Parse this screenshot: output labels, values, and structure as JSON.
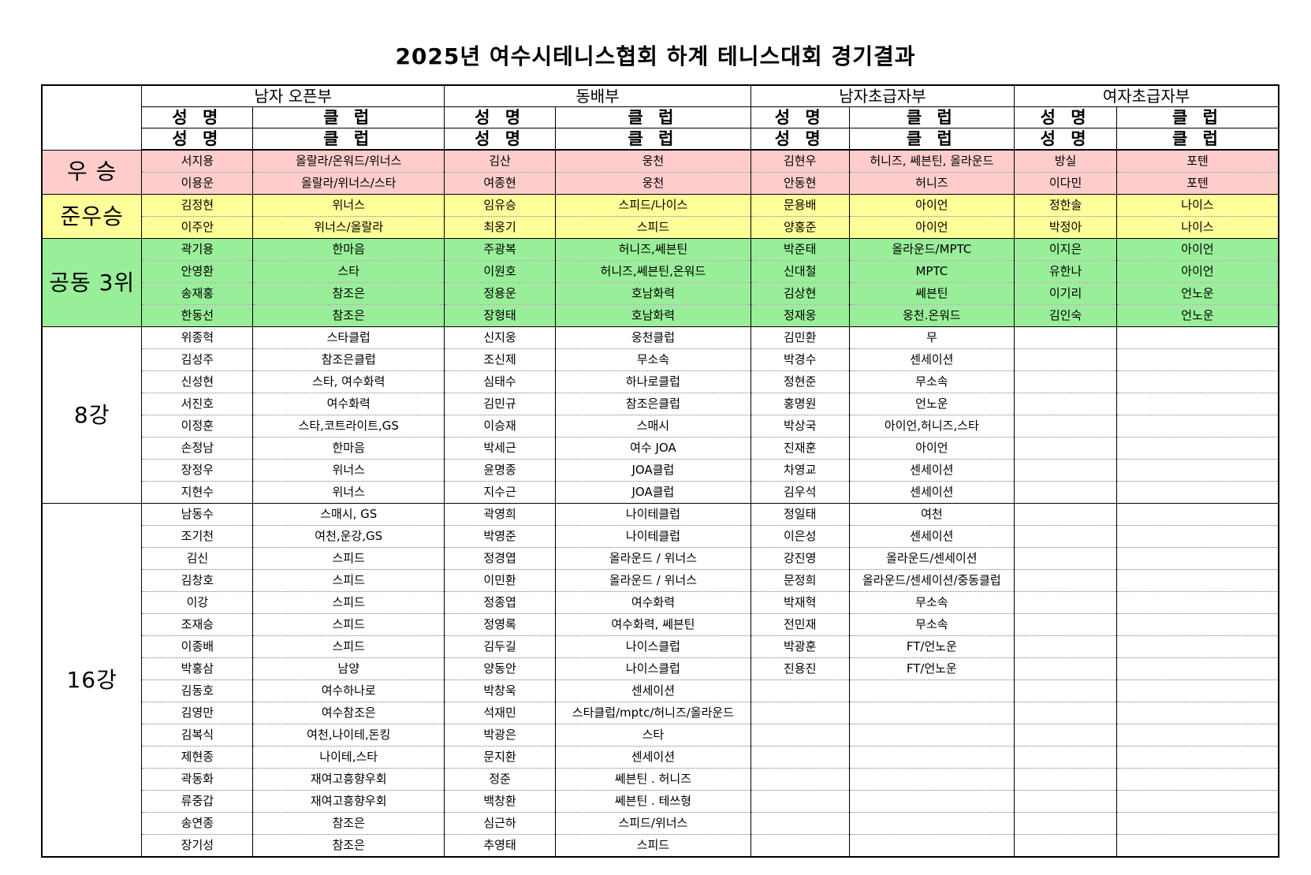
{
  "title": "2025년 여수시테니스협회 하계 테니스대회 경기결과",
  "divisions": [
    "남자 오픈부",
    "동배부",
    "남자초급자부",
    "여자초급자부"
  ],
  "sub_headers": {
    "name": "성 명",
    "club": "클 럽"
  },
  "colors": {
    "winner": "#ffcccc",
    "runner_up": "#ffff99",
    "third": "#99ee99"
  },
  "groups": [
    {
      "label": "우 승",
      "color": "#ffcccc",
      "rows": [
        [
          "서지용",
          "올랄라/온워드/위너스",
          "김산",
          "웅천",
          "김현우",
          "허니즈, 쎄븐틴, 올라운드",
          "방실",
          "포텐"
        ],
        [
          "이용운",
          "올랄라/위너스/스타",
          "여종현",
          "웅천",
          "안동현",
          "허니즈",
          "이다민",
          "포텐"
        ]
      ]
    },
    {
      "label": "준우승",
      "color": "#ffff99",
      "rows": [
        [
          "김정현",
          "위너스",
          "임유승",
          "스피드/나이스",
          "문용배",
          "아이언",
          "정한솔",
          "나이스"
        ],
        [
          "이주안",
          "위너스/올랄라",
          "최웅기",
          "스피드",
          "양홍준",
          "아이언",
          "박정아",
          "나이스"
        ]
      ]
    },
    {
      "label": "공동 3위",
      "color": "#99ee99",
      "rows": [
        [
          "곽기용",
          "한마음",
          "주광복",
          "허니즈,쎄븐틴",
          "박준태",
          "올라운드/MPTC",
          "이지은",
          "아이언"
        ],
        [
          "안영환",
          "스타",
          "이원호",
          "허니즈,쎄븐틴,온워드",
          "신대철",
          "MPTC",
          "유한나",
          "아이언"
        ],
        [
          "송재홍",
          "참조은",
          "정용운",
          "호남화력",
          "김상현",
          "쎄븐틴",
          "이기리",
          "언노운"
        ],
        [
          "한동선",
          "참조은",
          "장형태",
          "호남화력",
          "정재웅",
          "웅천.온워드",
          "김인숙",
          "언노운"
        ]
      ]
    },
    {
      "label": "8강",
      "color": "#ffffff",
      "rows": [
        [
          "위종혁",
          "스타클럽",
          "신지웅",
          "웅천클럽",
          "김민환",
          "무",
          "",
          ""
        ],
        [
          "김성주",
          "참조은클럽",
          "조신제",
          "무소속",
          "박경수",
          "센세이션",
          "",
          ""
        ],
        [
          "신성현",
          "스타, 여수화력",
          "심태수",
          "하나로클럽",
          "정현준",
          "무소속",
          "",
          ""
        ],
        [
          "서진호",
          "여수화력",
          "김민규",
          "참조은클럽",
          "홍명원",
          "언노운",
          "",
          ""
        ],
        [
          "이정훈",
          "스타,코트라이트,GS",
          "이승재",
          "스매시",
          "박상국",
          "아이언,허니즈,스타",
          "",
          ""
        ],
        [
          "손정남",
          "한마음",
          "박세근",
          "여수 JOA",
          "진재훈",
          "아이언",
          "",
          ""
        ],
        [
          "장정우",
          "위너스",
          "윤명종",
          "JOA클럽",
          "차영교",
          "센세이션",
          "",
          ""
        ],
        [
          "지현수",
          "위너스",
          "지수근",
          "JOA클럽",
          "김우석",
          "센세이션",
          "",
          ""
        ]
      ]
    },
    {
      "label": "16강",
      "color": "#ffffff",
      "rows": [
        [
          "남동수",
          "스매시, GS",
          "곽영희",
          "나이테클럽",
          "정일태",
          "여천",
          "",
          ""
        ],
        [
          "조기천",
          "여천,운강,GS",
          "박영준",
          "나이테클럽",
          "이은성",
          "센세이션",
          "",
          ""
        ],
        [
          "김신",
          "스피드",
          "정경엽",
          "올라운드 / 위너스",
          "강진영",
          "올라운드/센세이션",
          "",
          ""
        ],
        [
          "김창호",
          "스피드",
          "이민환",
          "올라운드 / 위너스",
          "문정희",
          "올라운드/센세이션/중동클럽",
          "",
          ""
        ],
        [
          "이강",
          "스피드",
          "정종엽",
          "여수화력",
          "박재혁",
          "무소속",
          "",
          ""
        ],
        [
          "조재승",
          "스피드",
          "정영록",
          "여수화력, 쎄븐틴",
          "전민재",
          "무소속",
          "",
          ""
        ],
        [
          "이종배",
          "스피드",
          "김두길",
          "나이스클럽",
          "박광훈",
          "FT/언노운",
          "",
          ""
        ],
        [
          "박홍삼",
          "남양",
          "양동안",
          "나이스클럽",
          "진용진",
          "FT/언노운",
          "",
          ""
        ],
        [
          "김동호",
          "여수하나로",
          "박창욱",
          "센세이션",
          "",
          "",
          "",
          ""
        ],
        [
          "김영만",
          "여수참조은",
          "석재민",
          "스타클럽/mptc/허니즈/올라운드",
          "",
          "",
          "",
          ""
        ],
        [
          "김복식",
          "여천,나이테,돈킹",
          "박광은",
          "스타",
          "",
          "",
          "",
          ""
        ],
        [
          "제현종",
          "나이테,스타",
          "문지환",
          "센세이션",
          "",
          "",
          "",
          ""
        ],
        [
          "곽동화",
          "재여고흥향우회",
          "정준",
          "쎄븐틴 . 허니즈",
          "",
          "",
          "",
          ""
        ],
        [
          "류중갑",
          "재여고흥향우회",
          "백창환",
          "쎄븐틴 . 테쓰형",
          "",
          "",
          "",
          ""
        ],
        [
          "송연종",
          "참조은",
          "심근하",
          "스피드/위너스",
          "",
          "",
          "",
          ""
        ],
        [
          "장기성",
          "참조은",
          "추영태",
          "스피드",
          "",
          "",
          "",
          ""
        ]
      ]
    }
  ]
}
